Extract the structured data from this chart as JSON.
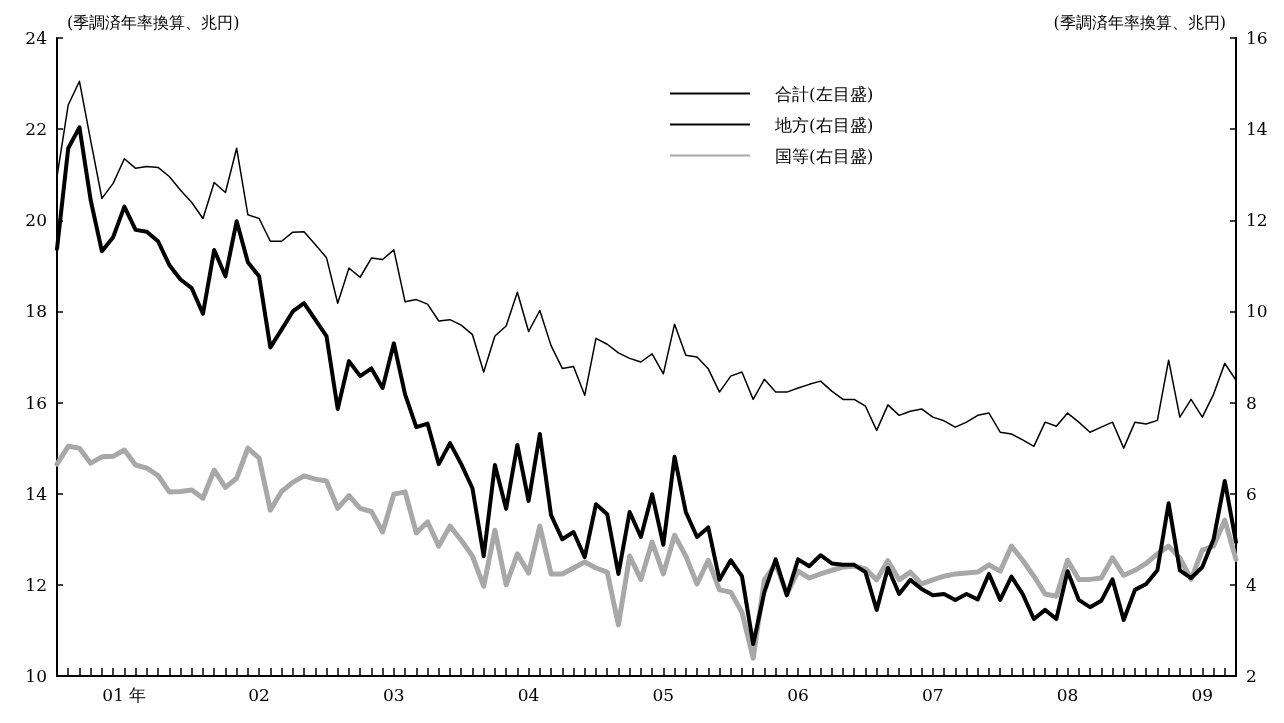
{
  "chart_data": {
    "type": "line",
    "ylabel": "(季調済年率換算、兆円)",
    "y2label": "(季調済年率換算、兆円)",
    "categories": [
      null,
      null,
      null,
      null,
      null,
      null,
      "01 年",
      null,
      null,
      null,
      null,
      null,
      null,
      null,
      null,
      null,
      null,
      null,
      "02",
      null,
      null,
      null,
      null,
      null,
      null,
      null,
      null,
      null,
      null,
      null,
      "03",
      null,
      null,
      null,
      null,
      null,
      null,
      null,
      null,
      null,
      null,
      null,
      "04",
      null,
      null,
      null,
      null,
      null,
      null,
      null,
      null,
      null,
      null,
      null,
      "05",
      null,
      null,
      null,
      null,
      null,
      null,
      null,
      null,
      null,
      null,
      null,
      "06",
      null,
      null,
      null,
      null,
      null,
      null,
      null,
      null,
      null,
      null,
      null,
      "07",
      null,
      null,
      null,
      null,
      null,
      null,
      null,
      null,
      null,
      null,
      null,
      "08",
      null,
      null,
      null,
      null,
      null,
      null,
      null,
      null,
      null,
      null,
      null,
      "09",
      null,
      null,
      null
    ],
    "series": [
      {
        "name": "合計(左目盛)",
        "color": "#000000",
        "values": [
          19.37,
          21.58,
          22.04,
          20.44,
          19.32,
          19.63,
          20.3,
          19.79,
          19.75,
          19.54,
          19.02,
          18.7,
          18.51,
          17.95,
          19.35,
          18.77,
          19.98,
          19.08,
          18.77,
          17.21,
          17.6,
          18.0,
          18.18,
          17.82,
          17.46,
          15.86,
          16.91,
          16.58,
          16.75,
          16.32,
          17.3,
          16.18,
          15.46,
          15.54,
          14.65,
          15.11,
          14.65,
          14.12,
          12.63,
          14.63,
          13.67,
          15.07,
          13.84,
          15.31,
          13.53,
          13.0,
          13.16,
          12.61,
          13.77,
          13.55,
          12.24,
          13.6,
          13.05,
          13.99,
          12.88,
          14.81,
          13.6,
          13.05,
          13.26,
          12.11,
          12.54,
          12.19,
          10.7,
          11.84,
          12.56,
          11.77,
          12.56,
          12.41,
          12.65,
          12.47,
          12.44,
          12.44,
          12.28,
          11.45,
          12.37,
          11.8,
          12.11,
          11.91,
          11.77,
          11.8,
          11.67,
          11.8,
          11.68,
          12.24,
          11.67,
          12.18,
          11.8,
          11.25,
          11.45,
          11.25,
          12.3,
          11.67,
          11.51,
          11.65,
          12.12,
          11.23,
          11.89,
          12.02,
          12.32,
          13.79,
          12.32,
          12.15,
          12.39,
          13.0,
          14.28,
          12.94
        ]
      },
      {
        "name": "地方(右目盛)",
        "color": "#000000",
        "axis": "y2",
        "values": [
          12.96,
          14.53,
          15.05,
          13.75,
          12.48,
          12.81,
          13.35,
          13.14,
          13.18,
          13.16,
          12.96,
          12.66,
          12.39,
          12.04,
          12.83,
          12.61,
          13.58,
          12.12,
          12.04,
          11.54,
          11.54,
          11.74,
          11.75,
          11.47,
          11.18,
          10.18,
          10.95,
          10.75,
          11.17,
          11.14,
          11.35,
          10.21,
          10.26,
          10.16,
          9.79,
          9.82,
          9.7,
          9.49,
          8.67,
          9.46,
          9.68,
          10.42,
          9.56,
          10.02,
          9.25,
          8.75,
          8.79,
          8.16,
          9.41,
          9.28,
          9.09,
          8.97,
          8.89,
          9.07,
          8.63,
          9.72,
          9.04,
          9.0,
          8.74,
          8.23,
          8.58,
          8.67,
          8.07,
          8.51,
          8.23,
          8.23,
          8.32,
          8.4,
          8.47,
          8.25,
          8.07,
          8.07,
          7.92,
          7.39,
          7.95,
          7.72,
          7.81,
          7.86,
          7.68,
          7.6,
          7.46,
          7.57,
          7.72,
          7.77,
          7.35,
          7.31,
          7.18,
          7.04,
          7.57,
          7.48,
          7.77,
          7.57,
          7.35,
          7.46,
          7.57,
          7.0,
          7.57,
          7.53,
          7.61,
          8.93,
          7.68,
          8.07,
          7.68,
          8.18,
          8.86,
          8.49
        ]
      },
      {
        "name": "国等(右目盛)",
        "color": "#a8a8a8",
        "axis": "y2",
        "values": [
          6.65,
          7.04,
          7.0,
          6.67,
          6.81,
          6.82,
          6.96,
          6.63,
          6.56,
          6.4,
          6.04,
          6.05,
          6.08,
          5.9,
          6.52,
          6.14,
          6.34,
          7.0,
          6.78,
          5.64,
          6.05,
          6.25,
          6.39,
          6.32,
          6.28,
          5.68,
          5.96,
          5.68,
          5.61,
          5.16,
          5.99,
          6.04,
          5.14,
          5.38,
          4.85,
          5.29,
          4.98,
          4.63,
          3.97,
          5.2,
          4.0,
          4.68,
          4.26,
          5.29,
          4.24,
          4.24,
          4.37,
          4.5,
          4.37,
          4.28,
          3.12,
          4.63,
          4.12,
          4.94,
          4.24,
          5.09,
          4.63,
          4.02,
          4.54,
          3.89,
          3.84,
          3.4,
          2.39,
          4.11,
          4.46,
          3.8,
          4.3,
          4.15,
          4.24,
          4.32,
          4.39,
          4.41,
          4.35,
          4.11,
          4.53,
          4.11,
          4.28,
          4.02,
          4.11,
          4.19,
          4.24,
          4.26,
          4.28,
          4.44,
          4.3,
          4.85,
          4.54,
          4.19,
          3.8,
          3.75,
          4.54,
          4.12,
          4.12,
          4.15,
          4.59,
          4.21,
          4.32,
          4.47,
          4.68,
          4.85,
          4.59,
          4.12,
          4.76,
          4.85,
          5.42,
          4.56
        ]
      }
    ],
    "ylim": [
      10,
      24
    ],
    "yticks": [
      10,
      12,
      14,
      16,
      18,
      20,
      22,
      24
    ],
    "y2lim": [
      2,
      16
    ],
    "y2ticks": [
      2,
      4,
      6,
      8,
      10,
      12,
      14,
      16
    ],
    "grid": false,
    "legend": "top",
    "marker": "none",
    "line_style": "solid"
  }
}
